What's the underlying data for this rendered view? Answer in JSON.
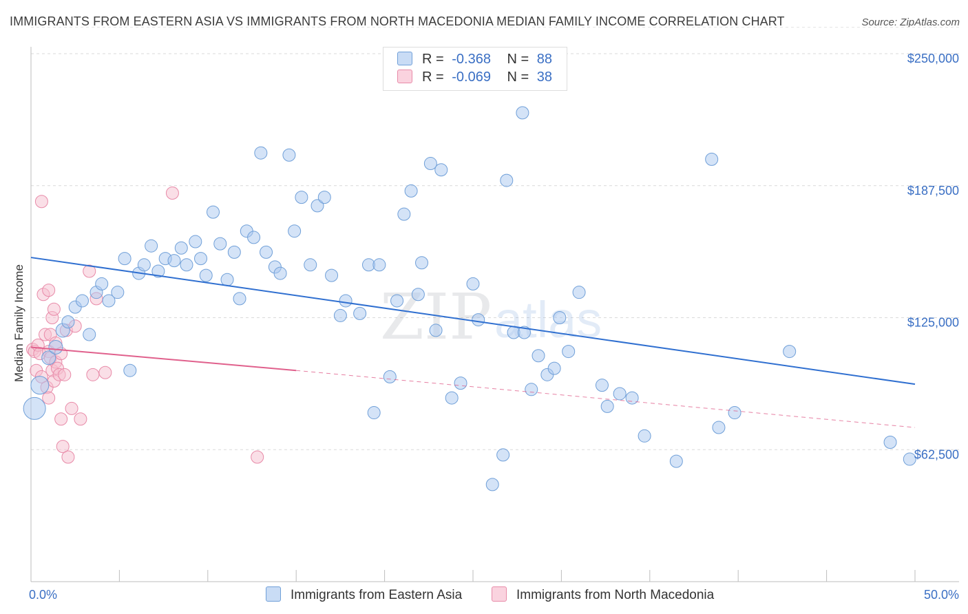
{
  "title": "IMMIGRANTS FROM EASTERN ASIA VS IMMIGRANTS FROM NORTH MACEDONIA MEDIAN FAMILY INCOME CORRELATION CHART",
  "source": "Source: ZipAtlas.com",
  "watermark": {
    "zip": "ZIP",
    "atlas": "atlas"
  },
  "legend": {
    "r_label": "R =",
    "n_label": "N =",
    "series": [
      {
        "name": "Immigrants from Eastern Asia",
        "r": "-0.368",
        "n": "88",
        "color": "#a9c8f0",
        "stroke": "#6f9fd8"
      },
      {
        "name": "Immigrants from North Macedonia",
        "r": "-0.069",
        "n": "38",
        "color": "#f6bfd0",
        "stroke": "#e88aa8"
      }
    ]
  },
  "chart_data": {
    "type": "scatter",
    "title": "IMMIGRANTS FROM EASTERN ASIA VS IMMIGRANTS FROM NORTH MACEDONIA MEDIAN FAMILY INCOME CORRELATION CHART",
    "xlabel": "",
    "ylabel": "Median Family Income",
    "xlim": [
      0,
      50
    ],
    "ylim": [
      0,
      262500
    ],
    "x_tick_labels": [
      "0.0%",
      "50.0%"
    ],
    "y_ticks": [
      62500,
      125000,
      187500,
      250000
    ],
    "y_tick_labels": [
      "$62,500",
      "$125,000",
      "$187,500",
      "$250,000"
    ],
    "series": [
      {
        "name": "Immigrants from Eastern Asia",
        "color": "#a9c8f0",
        "trend": {
          "x": [
            0,
            50
          ],
          "y": [
            153500,
            93500
          ],
          "color": "#2f6fd0"
        },
        "points": [
          [
            0.2,
            82000,
            16
          ],
          [
            0.5,
            93000,
            13
          ],
          [
            1.0,
            106000,
            10
          ],
          [
            1.4,
            111000,
            10
          ],
          [
            1.8,
            119000,
            10
          ],
          [
            2.1,
            123000,
            9
          ],
          [
            2.5,
            130000,
            9
          ],
          [
            2.9,
            133000,
            9
          ],
          [
            3.3,
            117000,
            9
          ],
          [
            3.7,
            137000,
            9
          ],
          [
            4.0,
            141000,
            9
          ],
          [
            4.4,
            133000,
            9
          ],
          [
            4.9,
            137000,
            9
          ],
          [
            5.3,
            153000,
            9
          ],
          [
            5.6,
            100000,
            9
          ],
          [
            6.1,
            146000,
            9
          ],
          [
            6.4,
            150000,
            9
          ],
          [
            6.8,
            159000,
            9
          ],
          [
            7.2,
            147000,
            9
          ],
          [
            7.6,
            153000,
            9
          ],
          [
            8.1,
            152000,
            9
          ],
          [
            8.5,
            158000,
            9
          ],
          [
            8.8,
            150000,
            9
          ],
          [
            9.3,
            161000,
            9
          ],
          [
            9.6,
            153000,
            9
          ],
          [
            9.9,
            145000,
            9
          ],
          [
            10.3,
            175000,
            9
          ],
          [
            10.7,
            160000,
            9
          ],
          [
            11.1,
            143000,
            9
          ],
          [
            11.5,
            156000,
            9
          ],
          [
            11.8,
            134000,
            9
          ],
          [
            12.2,
            166000,
            9
          ],
          [
            12.6,
            163000,
            9
          ],
          [
            13.0,
            203000,
            9
          ],
          [
            13.3,
            156000,
            9
          ],
          [
            13.8,
            149000,
            9
          ],
          [
            14.1,
            146000,
            9
          ],
          [
            14.6,
            202000,
            9
          ],
          [
            14.9,
            166000,
            9
          ],
          [
            15.3,
            182000,
            9
          ],
          [
            15.8,
            150000,
            9
          ],
          [
            16.2,
            178000,
            9
          ],
          [
            16.6,
            182000,
            9
          ],
          [
            17.0,
            145000,
            9
          ],
          [
            17.5,
            126000,
            9
          ],
          [
            17.8,
            133000,
            9
          ],
          [
            18.6,
            127000,
            9
          ],
          [
            19.1,
            150000,
            9
          ],
          [
            19.4,
            80000,
            9
          ],
          [
            19.7,
            150000,
            9
          ],
          [
            20.3,
            97000,
            9
          ],
          [
            20.7,
            133000,
            9
          ],
          [
            21.1,
            174000,
            9
          ],
          [
            21.5,
            185000,
            9
          ],
          [
            21.9,
            136000,
            9
          ],
          [
            22.1,
            151000,
            9
          ],
          [
            22.6,
            198000,
            9
          ],
          [
            22.9,
            119000,
            9
          ],
          [
            23.2,
            195000,
            9
          ],
          [
            23.8,
            87000,
            9
          ],
          [
            24.3,
            94000,
            9
          ],
          [
            25.0,
            141000,
            9
          ],
          [
            25.3,
            124000,
            9
          ],
          [
            26.1,
            46000,
            9
          ],
          [
            26.7,
            60000,
            9
          ],
          [
            26.9,
            190000,
            9
          ],
          [
            27.3,
            118000,
            9
          ],
          [
            27.8,
            222000,
            9
          ],
          [
            27.9,
            118000,
            9
          ],
          [
            28.3,
            91000,
            9
          ],
          [
            28.7,
            107000,
            9
          ],
          [
            29.2,
            98000,
            9
          ],
          [
            29.6,
            101000,
            9
          ],
          [
            29.9,
            125000,
            9
          ],
          [
            30.4,
            109000,
            9
          ],
          [
            31.0,
            137000,
            9
          ],
          [
            32.3,
            93000,
            9
          ],
          [
            32.6,
            83000,
            9
          ],
          [
            33.3,
            89000,
            9
          ],
          [
            34.0,
            87000,
            9
          ],
          [
            34.7,
            69000,
            9
          ],
          [
            36.5,
            57000,
            9
          ],
          [
            38.5,
            200000,
            9
          ],
          [
            38.9,
            73000,
            9
          ],
          [
            39.8,
            80000,
            9
          ],
          [
            42.9,
            109000,
            9
          ],
          [
            48.6,
            66000,
            9
          ],
          [
            49.7,
            58000,
            9
          ]
        ]
      },
      {
        "name": "Immigrants from North Macedonia",
        "color": "#f6bfd0",
        "trend": {
          "x": [
            0,
            15
          ],
          "y": [
            111000,
            100000
          ],
          "color": "#e0608c",
          "dashed_extension_to_x": 50,
          "dashed_extension_y": 73000
        },
        "points": [
          [
            0.1,
            110000,
            9
          ],
          [
            0.2,
            109000,
            9
          ],
          [
            0.3,
            100000,
            9
          ],
          [
            0.4,
            112000,
            9
          ],
          [
            0.5,
            108000,
            9
          ],
          [
            0.6,
            97000,
            9
          ],
          [
            0.6,
            180000,
            9
          ],
          [
            0.7,
            136000,
            9
          ],
          [
            0.8,
            117000,
            9
          ],
          [
            0.9,
            92000,
            9
          ],
          [
            1.0,
            138000,
            9
          ],
          [
            1.0,
            109000,
            9
          ],
          [
            1.0,
            87000,
            9
          ],
          [
            1.1,
            117000,
            9
          ],
          [
            1.1,
            106000,
            9
          ],
          [
            1.2,
            125000,
            9
          ],
          [
            1.2,
            100000,
            9
          ],
          [
            1.3,
            95000,
            9
          ],
          [
            1.3,
            129000,
            9
          ],
          [
            1.4,
            104000,
            9
          ],
          [
            1.4,
            113000,
            9
          ],
          [
            1.5,
            101000,
            9
          ],
          [
            1.6,
            98000,
            9
          ],
          [
            1.7,
            108000,
            9
          ],
          [
            1.7,
            77000,
            9
          ],
          [
            1.8,
            64000,
            9
          ],
          [
            1.9,
            98000,
            9
          ],
          [
            2.0,
            119000,
            9
          ],
          [
            2.1,
            59000,
            9
          ],
          [
            2.3,
            82000,
            9
          ],
          [
            2.5,
            121000,
            9
          ],
          [
            2.8,
            77000,
            9
          ],
          [
            3.3,
            147000,
            9
          ],
          [
            3.5,
            98000,
            9
          ],
          [
            3.7,
            134000,
            9
          ],
          [
            4.2,
            99000,
            9
          ],
          [
            8.0,
            184000,
            9
          ],
          [
            12.8,
            59000,
            9
          ]
        ]
      }
    ]
  }
}
